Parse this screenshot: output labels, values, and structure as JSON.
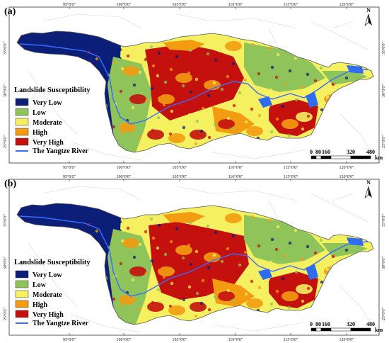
{
  "figure": {
    "panels": [
      {
        "label": "(a)",
        "top_ticks": [
          "95°0'0\"",
          "100°0'0\"",
          "105°0'0\"",
          "110°0'0\"",
          "115°0'0\"",
          "120°0'0\""
        ],
        "bottom_ticks": [
          "95°0'0\"",
          "100°0'0\"",
          "105°0'0\"",
          "110°0'0\"",
          "115°0'0\"",
          "120°0'0\""
        ],
        "left_ticks": [
          "35°0'0\"",
          "30°0'0\"",
          "25°0'0\""
        ],
        "right_ticks": [
          "35°0'0\"",
          "30°0'0\"",
          "25°0'0\""
        ]
      },
      {
        "label": "(b)",
        "top_ticks": [
          "95°0'0\"",
          "100°0'0\"",
          "105°0'0\"",
          "110°0'0\"",
          "115°0'0\"",
          "120°0'0\""
        ],
        "bottom_ticks": [
          "95°0'0\"",
          "100°0'0\"",
          "105°0'0\"",
          "110°0'0\"",
          "115°0'0\"",
          "120°0'0\""
        ],
        "left_ticks": [
          "35°0'0\"",
          "30°0'0\"",
          "25°0'0\""
        ],
        "right_ticks": [
          "35°0'0\"",
          "30°0'0\"",
          "25°0'0\""
        ]
      }
    ],
    "legend": {
      "title": "Landslide Susceptibility",
      "items": [
        {
          "label": "Very Low",
          "color": "#0b1f78"
        },
        {
          "label": "Low",
          "color": "#8fc45a"
        },
        {
          "label": "Moderate",
          "color": "#f4f060"
        },
        {
          "label": "High",
          "color": "#f39c12"
        },
        {
          "label": "Very High",
          "color": "#c4110e"
        }
      ],
      "river_label": "The Yangtze River",
      "river_color": "#3b6bff"
    },
    "north_arrow": "N",
    "scale_bar": {
      "ticks": [
        "0",
        "80",
        "160",
        "320",
        "480"
      ],
      "unit": "km"
    },
    "colors": {
      "basin_outline": "#555555",
      "lakes": "#2e6cf0",
      "graticule": "#d8d8d8"
    }
  }
}
